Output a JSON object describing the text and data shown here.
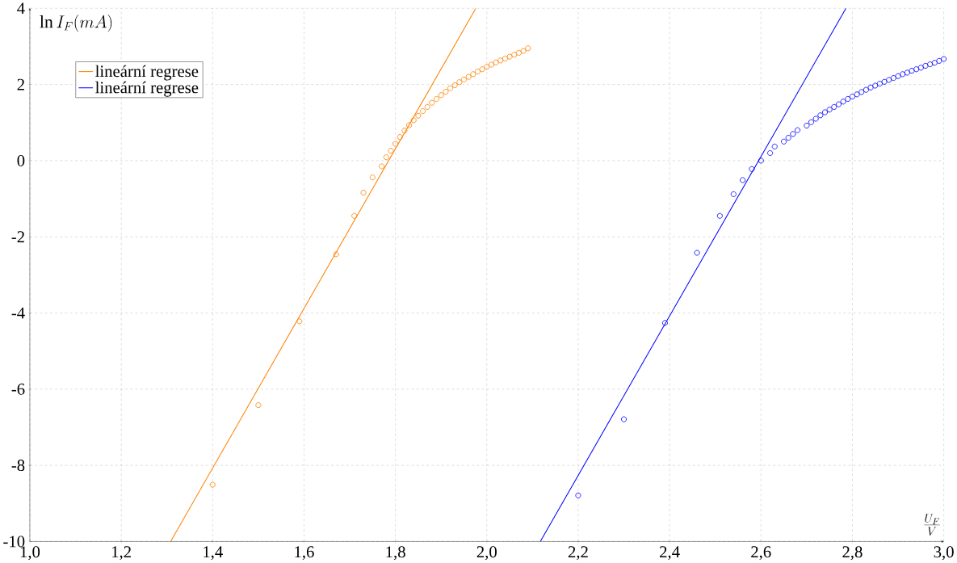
{
  "chart_data": {
    "type": "scatter",
    "xlabel": "\\frac{U_F}{V}",
    "ylabel": "\\ln I_F(mA)",
    "xlim": [
      1.0,
      3.0
    ],
    "ylim": [
      -10,
      4
    ],
    "xticks": [
      {
        "value": 1.0,
        "label": "1,0"
      },
      {
        "value": 1.2,
        "label": "1,2"
      },
      {
        "value": 1.4,
        "label": "1,4"
      },
      {
        "value": 1.6,
        "label": "1,6"
      },
      {
        "value": 1.8,
        "label": "1,8"
      },
      {
        "value": 2.0,
        "label": "2,0"
      },
      {
        "value": 2.2,
        "label": "2,2"
      },
      {
        "value": 2.4,
        "label": "2,4"
      },
      {
        "value": 2.6,
        "label": "2,6"
      },
      {
        "value": 2.8,
        "label": "2,8"
      },
      {
        "value": 3.0,
        "label": "3,0"
      }
    ],
    "yticks": [
      -10,
      -8,
      -6,
      -4,
      -2,
      0,
      2,
      4
    ],
    "grid": true,
    "legend": "top left",
    "marker": "circle",
    "series": [
      {
        "type": "scatter",
        "color": "#ff8000",
        "x": [
          1.4,
          1.5,
          1.59,
          1.67,
          1.71,
          1.73,
          1.75,
          1.77,
          1.78,
          1.79,
          1.8,
          1.81,
          1.82,
          1.83,
          1.84,
          1.85,
          1.86,
          1.87,
          1.88,
          1.89,
          1.9,
          1.91,
          1.92,
          1.93,
          1.94,
          1.95,
          1.96,
          1.97,
          1.98,
          1.99,
          2.0,
          2.01,
          2.02,
          2.03,
          2.04,
          2.05,
          2.06,
          2.07,
          2.08,
          2.09
        ],
        "values": [
          -8.51,
          -6.42,
          -4.22,
          -2.46,
          -1.45,
          -0.84,
          -0.44,
          -0.15,
          0.09,
          0.26,
          0.44,
          0.62,
          0.79,
          0.93,
          1.06,
          1.18,
          1.3,
          1.41,
          1.52,
          1.62,
          1.72,
          1.81,
          1.9,
          1.98,
          2.06,
          2.13,
          2.2,
          2.27,
          2.34,
          2.4,
          2.46,
          2.52,
          2.58,
          2.63,
          2.68,
          2.73,
          2.78,
          2.83,
          2.88,
          2.95
        ]
      },
      {
        "type": "line",
        "name": "lineární regrese",
        "color": "#ff8000",
        "line_style": "solid",
        "marker": "none",
        "x": [
          1.308,
          1.976
        ],
        "values": [
          -10,
          4
        ]
      },
      {
        "type": "scatter",
        "color": "#0000ff",
        "x": [
          2.2,
          2.3,
          2.39,
          2.46,
          2.51,
          2.54,
          2.56,
          2.58,
          2.6,
          2.62,
          2.63,
          2.65,
          2.66,
          2.67,
          2.68,
          2.7,
          2.71,
          2.72,
          2.73,
          2.74,
          2.75,
          2.76,
          2.77,
          2.78,
          2.79,
          2.8,
          2.81,
          2.82,
          2.83,
          2.84,
          2.85,
          2.86,
          2.87,
          2.88,
          2.89,
          2.9,
          2.91,
          2.92,
          2.93,
          2.94,
          2.95,
          2.96,
          2.97,
          2.98,
          2.99,
          3.0
        ],
        "values": [
          -8.79,
          -6.79,
          -4.26,
          -2.42,
          -1.45,
          -0.88,
          -0.51,
          -0.22,
          0.0,
          0.2,
          0.37,
          0.5,
          0.6,
          0.7,
          0.8,
          0.92,
          1.01,
          1.1,
          1.19,
          1.27,
          1.34,
          1.41,
          1.48,
          1.55,
          1.62,
          1.68,
          1.74,
          1.8,
          1.86,
          1.92,
          1.97,
          2.02,
          2.07,
          2.12,
          2.17,
          2.22,
          2.27,
          2.31,
          2.36,
          2.4,
          2.44,
          2.49,
          2.53,
          2.57,
          2.62,
          2.67
        ]
      },
      {
        "type": "line",
        "name": "lineární regrese",
        "color": "#0000ff",
        "line_style": "solid",
        "marker": "none",
        "x": [
          2.117,
          2.786
        ],
        "values": [
          -10,
          4
        ]
      }
    ]
  }
}
